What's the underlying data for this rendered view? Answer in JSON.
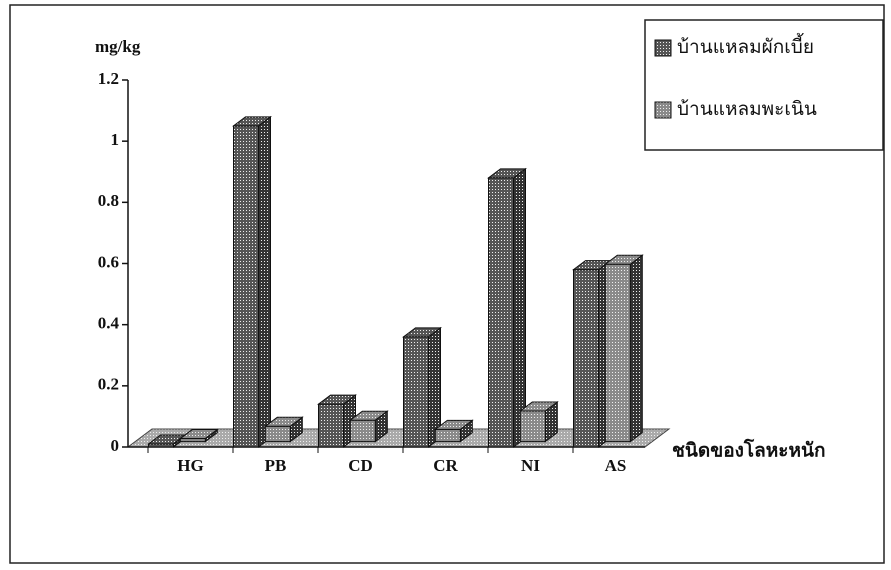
{
  "chart_data": {
    "type": "bar3d",
    "y_axis_label": "mg/kg",
    "x_axis_label": "ชนิดของโลหะหนัก",
    "categories": [
      "HG",
      "PB",
      "CD",
      "CR",
      "NI",
      "AS"
    ],
    "series": [
      {
        "name": "บ้านแหลมผักเบี้ย",
        "color": "#555555",
        "values": [
          0.01,
          1.05,
          0.14,
          0.36,
          0.88,
          0.58
        ]
      },
      {
        "name": "บ้านแหลมพะเนิน",
        "color": "#8a8a8a",
        "values": [
          0.01,
          0.05,
          0.07,
          0.04,
          0.1,
          0.58
        ]
      }
    ],
    "ylim": [
      0,
      1.2
    ],
    "yticks": [
      0,
      0.2,
      0.4,
      0.6,
      0.8,
      1,
      1.2
    ]
  }
}
